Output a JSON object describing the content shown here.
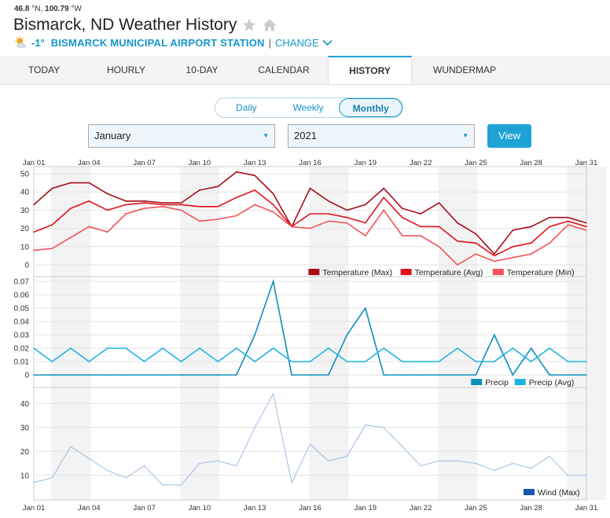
{
  "header": {
    "lat": "46.8",
    "lat_unit": "°N,",
    "lon": "100.79",
    "lon_unit": "°W",
    "title": "Bismarck, ND Weather History",
    "temp": "-1°",
    "station": "BISMARCK MUNICIPAL AIRPORT STATION",
    "separator": "|",
    "change_label": "CHANGE"
  },
  "tabs": [
    "TODAY",
    "HOURLY",
    "10-DAY",
    "CALENDAR",
    "HISTORY",
    "WUNDERMAP"
  ],
  "active_tab": "HISTORY",
  "period_toggle": {
    "options": [
      "Daily",
      "Weekly",
      "Monthly"
    ],
    "selected": "Monthly"
  },
  "month_select": {
    "value": "January"
  },
  "year_select": {
    "value": "2021"
  },
  "view_button": "View",
  "colors": {
    "temp_max": "#a50f1c",
    "temp_avg": "#e0141e",
    "temp_min": "#f2545b",
    "precip": "#0d8fbd",
    "precip_avg": "#1fb2e2",
    "wind": "#9dbde3",
    "wind_legend": "#1a55b0",
    "accent": "#1fa3d6"
  },
  "chart_data": [
    {
      "type": "line",
      "x_tick_labels": [
        "Jan 01",
        "Jan 04",
        "Jan 07",
        "Jan 10",
        "Jan 13",
        "Jan 16",
        "Jan 19",
        "Jan 22",
        "Jan 25",
        "Jan 28",
        "Jan 31"
      ],
      "x": [
        "Jan 01",
        "Jan 02",
        "Jan 03",
        "Jan 04",
        "Jan 05",
        "Jan 06",
        "Jan 07",
        "Jan 08",
        "Jan 09",
        "Jan 10",
        "Jan 11",
        "Jan 12",
        "Jan 13",
        "Jan 14",
        "Jan 15",
        "Jan 16",
        "Jan 17",
        "Jan 18",
        "Jan 19",
        "Jan 20",
        "Jan 21",
        "Jan 22",
        "Jan 23",
        "Jan 24",
        "Jan 25",
        "Jan 26",
        "Jan 27",
        "Jan 28",
        "Jan 29",
        "Jan 30",
        "Jan 31"
      ],
      "ylim": [
        0,
        50
      ],
      "y_ticks": [
        0,
        10,
        20,
        30,
        40,
        50
      ],
      "series": [
        {
          "name": "Temperature (Max)",
          "color": "#a50f1c",
          "values": [
            33,
            42,
            45,
            45,
            39,
            35,
            35,
            34,
            34,
            41,
            43,
            51,
            49,
            39,
            21,
            42,
            35,
            30,
            33,
            42,
            31,
            28,
            34,
            23,
            17,
            6,
            19,
            21,
            26,
            26,
            23
          ]
        },
        {
          "name": "Temperature (Avg)",
          "color": "#e0141e",
          "values": [
            18,
            22,
            31,
            35,
            30,
            33,
            34,
            33,
            33,
            32,
            32,
            37,
            41,
            33,
            21,
            28,
            28,
            26,
            23,
            37,
            26,
            21,
            21,
            13,
            12,
            5,
            10,
            12,
            21,
            24,
            21
          ]
        },
        {
          "name": "Temperature (Min)",
          "color": "#f2545b",
          "values": [
            8,
            9,
            15,
            21,
            18,
            28,
            31,
            32,
            30,
            24,
            25,
            27,
            33,
            29,
            21,
            20,
            24,
            23,
            16,
            30,
            16,
            16,
            10,
            0,
            6,
            2,
            4,
            6,
            12,
            22,
            19
          ]
        }
      ]
    },
    {
      "type": "line",
      "x": [
        "Jan 01",
        "Jan 02",
        "Jan 03",
        "Jan 04",
        "Jan 05",
        "Jan 06",
        "Jan 07",
        "Jan 08",
        "Jan 09",
        "Jan 10",
        "Jan 11",
        "Jan 12",
        "Jan 13",
        "Jan 14",
        "Jan 15",
        "Jan 16",
        "Jan 17",
        "Jan 18",
        "Jan 19",
        "Jan 20",
        "Jan 21",
        "Jan 22",
        "Jan 23",
        "Jan 24",
        "Jan 25",
        "Jan 26",
        "Jan 27",
        "Jan 28",
        "Jan 29",
        "Jan 30",
        "Jan 31"
      ],
      "ylim": [
        0,
        0.07
      ],
      "y_ticks": [
        0,
        0.01,
        0.02,
        0.03,
        0.04,
        0.05,
        0.06,
        0.07
      ],
      "y_tick_labels": [
        "0",
        "0.01",
        "0.02",
        "0.03",
        "0.04",
        "0.05",
        "0.06",
        "0.07"
      ],
      "series": [
        {
          "name": "Precip",
          "color": "#0d8fbd",
          "values": [
            0,
            0,
            0,
            0,
            0,
            0,
            0,
            0,
            0,
            0,
            0,
            0,
            0.03,
            0.07,
            0,
            0,
            0,
            0.03,
            0.05,
            0,
            0,
            0,
            0,
            0,
            0,
            0.03,
            0,
            0.02,
            0,
            0,
            0
          ]
        },
        {
          "name": "Precip (Avg)",
          "color": "#1fb2e2",
          "values": [
            0.02,
            0.01,
            0.02,
            0.01,
            0.02,
            0.02,
            0.01,
            0.02,
            0.01,
            0.02,
            0.01,
            0.02,
            0.01,
            0.02,
            0.01,
            0.01,
            0.02,
            0.01,
            0.01,
            0.02,
            0.01,
            0.01,
            0.01,
            0.02,
            0.01,
            0.01,
            0.02,
            0.01,
            0.02,
            0.01,
            0.01
          ]
        }
      ]
    },
    {
      "type": "line",
      "x_tick_labels": [
        "Jan 01",
        "Jan 04",
        "Jan 07",
        "Jan 10",
        "Jan 13",
        "Jan 16",
        "Jan 19",
        "Jan 22",
        "Jan 25",
        "Jan 28",
        "Jan 31"
      ],
      "x": [
        "Jan 01",
        "Jan 02",
        "Jan 03",
        "Jan 04",
        "Jan 05",
        "Jan 06",
        "Jan 07",
        "Jan 08",
        "Jan 09",
        "Jan 10",
        "Jan 11",
        "Jan 12",
        "Jan 13",
        "Jan 14",
        "Jan 15",
        "Jan 16",
        "Jan 17",
        "Jan 18",
        "Jan 19",
        "Jan 20",
        "Jan 21",
        "Jan 22",
        "Jan 23",
        "Jan 24",
        "Jan 25",
        "Jan 26",
        "Jan 27",
        "Jan 28",
        "Jan 29",
        "Jan 30",
        "Jan 31"
      ],
      "ylim": [
        5,
        45
      ],
      "y_ticks": [
        10,
        20,
        30,
        40
      ],
      "series": [
        {
          "name": "Wind (Max)",
          "color": "#9dbde3",
          "values": [
            7,
            9,
            22,
            17,
            12,
            9,
            14,
            6,
            6,
            15,
            16,
            14,
            30,
            44,
            7,
            23,
            16,
            18,
            31,
            30,
            22,
            14,
            16,
            16,
            15,
            12,
            15,
            13,
            18,
            10,
            10
          ]
        }
      ]
    }
  ]
}
